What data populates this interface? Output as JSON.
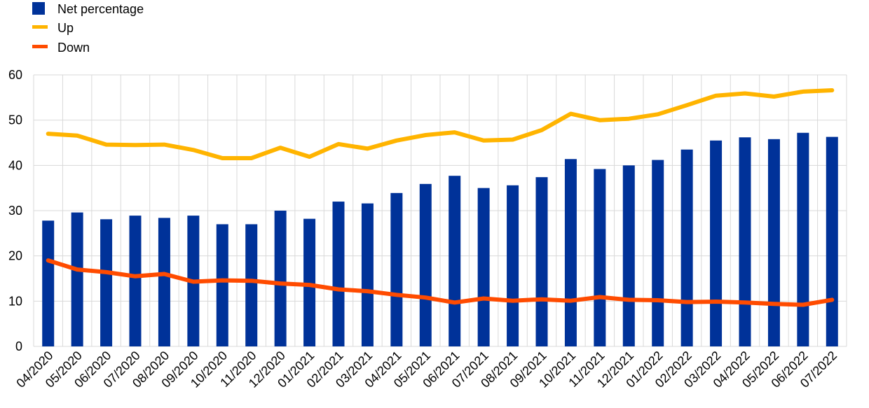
{
  "chart_data": {
    "type": "bar",
    "title": "",
    "xlabel": "",
    "ylabel": "",
    "ylim": [
      0,
      60
    ],
    "yticks": [
      0,
      10,
      20,
      30,
      40,
      50,
      60
    ],
    "grid": true,
    "legend_position": "top-left",
    "categories": [
      "04/2020",
      "05/2020",
      "06/2020",
      "07/2020",
      "08/2020",
      "09/2020",
      "10/2020",
      "11/2020",
      "12/2020",
      "01/2021",
      "02/2021",
      "03/2021",
      "04/2021",
      "05/2021",
      "06/2021",
      "07/2021",
      "08/2021",
      "09/2021",
      "10/2021",
      "11/2021",
      "12/2021",
      "01/2022",
      "02/2022",
      "03/2022",
      "04/2022",
      "05/2022",
      "06/2022",
      "07/2022"
    ],
    "series": [
      {
        "name": "Net percentage",
        "kind": "bar",
        "color": "#003299",
        "values": [
          27.8,
          29.6,
          28.1,
          28.9,
          28.4,
          28.9,
          27.0,
          27.0,
          30.0,
          28.2,
          32.0,
          31.6,
          33.9,
          35.9,
          37.7,
          35.0,
          35.6,
          37.4,
          41.4,
          39.2,
          40.0,
          41.2,
          43.5,
          45.5,
          46.2,
          45.8,
          47.2,
          46.3
        ]
      },
      {
        "name": "Up",
        "kind": "line",
        "color": "#FFB400",
        "values": [
          47.0,
          46.6,
          44.6,
          44.5,
          44.6,
          43.4,
          41.6,
          41.6,
          43.9,
          41.9,
          44.7,
          43.7,
          45.5,
          46.7,
          47.3,
          45.5,
          45.7,
          47.8,
          51.4,
          50.0,
          50.3,
          51.3,
          53.3,
          55.4,
          55.9,
          55.2,
          56.3,
          56.6
        ]
      },
      {
        "name": "Down",
        "kind": "line",
        "color": "#FF4B00",
        "values": [
          19.0,
          17.0,
          16.4,
          15.5,
          16.0,
          14.3,
          14.6,
          14.5,
          13.9,
          13.6,
          12.6,
          12.2,
          11.4,
          10.8,
          9.7,
          10.6,
          10.1,
          10.4,
          10.1,
          10.9,
          10.3,
          10.2,
          9.8,
          9.9,
          9.7,
          9.4,
          9.2,
          10.3
        ]
      }
    ]
  }
}
